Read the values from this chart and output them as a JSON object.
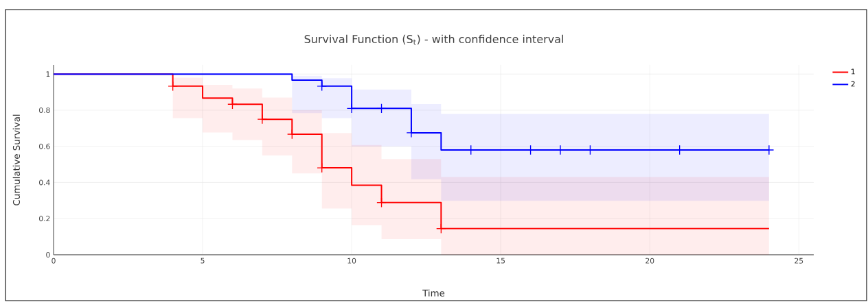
{
  "chart_data": {
    "type": "step",
    "title": "Survival Function (S$_{t}$) - with confidence interval",
    "xlabel": "Time",
    "ylabel": "Cumulative Survival",
    "xlim": [
      0,
      25.5
    ],
    "ylim": [
      0,
      1.05
    ],
    "xticks": [
      0,
      5,
      10,
      15,
      20,
      25
    ],
    "yticks": [
      0,
      0.2,
      0.4,
      0.6,
      0.8,
      1
    ],
    "grid": true,
    "legend": "top right",
    "marker": "none",
    "line_style": "solid",
    "series": [
      {
        "name": "1",
        "color": "#ff0000",
        "x": [
          0,
          4,
          5,
          6,
          7,
          8,
          9,
          10,
          11,
          13,
          24
        ],
        "values": [
          1,
          0.933,
          0.867,
          0.833,
          0.75,
          0.667,
          0.481,
          0.385,
          0.289,
          0.145,
          0.145
        ],
        "lower": [
          1,
          0.756,
          0.677,
          0.635,
          0.55,
          0.45,
          0.256,
          0.163,
          0.087,
          0,
          0
        ],
        "upper": [
          1,
          0.98,
          0.94,
          0.92,
          0.87,
          0.8,
          0.674,
          0.607,
          0.53,
          0.43,
          0.43
        ]
      },
      {
        "name": "2",
        "color": "#0000ff",
        "x": [
          0,
          8,
          9,
          10,
          12,
          13,
          24
        ],
        "values": [
          1,
          0.967,
          0.933,
          0.81,
          0.675,
          0.58,
          0.58
        ],
        "lower": [
          1,
          0.784,
          0.756,
          0.6,
          0.418,
          0.298,
          0.298
        ],
        "upper": [
          1,
          0.99,
          0.977,
          0.914,
          0.834,
          0.78,
          0.78
        ]
      },
      {
        "type": "scatter",
        "marker": "cross",
        "color": "#ff0000",
        "x": [
          4,
          6,
          7,
          8,
          9,
          11,
          13
        ],
        "values": [
          0.933,
          0.833,
          0.75,
          0.667,
          0.481,
          0.289,
          0.145
        ]
      },
      {
        "type": "scatter",
        "marker": "cross",
        "color": "#0000ff",
        "x": [
          9,
          10,
          11,
          12,
          14,
          16,
          17,
          18,
          21,
          24
        ],
        "values": [
          0.933,
          0.81,
          0.81,
          0.675,
          0.58,
          0.58,
          0.58,
          0.58,
          0.58,
          0.58
        ]
      }
    ]
  }
}
